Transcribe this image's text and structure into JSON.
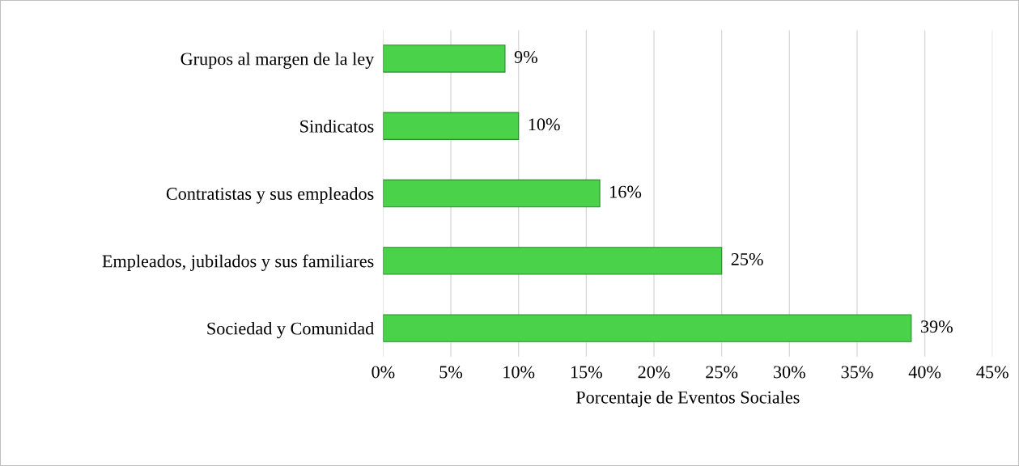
{
  "chart_data": {
    "type": "bar",
    "orientation": "horizontal",
    "xlabel": "Porcentaje de Eventos Sociales",
    "categories": [
      "Grupos al margen de la ley",
      "Sindicatos",
      "Contratistas y sus empleados",
      "Empleados, jubilados y sus familiares",
      "Sociedad y Comunidad"
    ],
    "values": [
      9,
      10,
      16,
      25,
      39
    ],
    "color": "#4ad34a",
    "xlim": [
      0,
      45
    ],
    "xticks": [
      {
        "value": 0,
        "label": "0%"
      },
      {
        "value": 5,
        "label": "5%"
      },
      {
        "value": 10,
        "label": "10%"
      },
      {
        "value": 15,
        "label": "15%"
      },
      {
        "value": 20,
        "label": "20%"
      },
      {
        "value": 25,
        "label": "25%"
      },
      {
        "value": 30,
        "label": "30%"
      },
      {
        "value": 35,
        "label": "35%"
      },
      {
        "value": 40,
        "label": "40%"
      },
      {
        "value": 45,
        "label": "45%"
      }
    ],
    "value_labels": [
      "9%",
      "10%",
      "16%",
      "25%",
      "39%"
    ],
    "grid": "x",
    "legend": false
  }
}
